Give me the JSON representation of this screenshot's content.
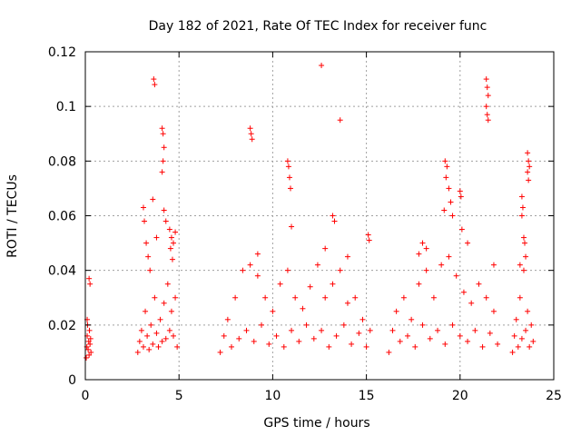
{
  "chart_data": {
    "type": "scatter",
    "title": "Day 182 of 2021, Rate Of TEC Index for receiver func",
    "xlabel": "GPS time / hours",
    "ylabel": "ROTI / TECUs",
    "xlim": [
      0,
      25
    ],
    "ylim": [
      0,
      0.12
    ],
    "xticks": [
      0,
      5,
      10,
      15,
      20,
      25
    ],
    "xtick_labels": [
      "0",
      "5",
      "10",
      "15",
      "20",
      "25"
    ],
    "yticks": [
      0,
      0.02,
      0.04,
      0.06,
      0.08,
      0.1,
      0.12
    ],
    "ytick_labels": [
      "0",
      "0.02",
      "0.04",
      "0.06",
      "0.08",
      "0.1",
      "0.12"
    ],
    "grid": true,
    "marker": "+",
    "series_color": "#ff0000",
    "series": [
      {
        "points": [
          [
            0.05,
            0.008
          ],
          [
            0.08,
            0.012
          ],
          [
            0.1,
            0.016
          ],
          [
            0.12,
            0.02
          ],
          [
            0.15,
            0.011
          ],
          [
            0.18,
            0.014
          ],
          [
            0.2,
            0.009
          ],
          [
            0.22,
            0.018
          ],
          [
            0.25,
            0.013
          ],
          [
            0.28,
            0.015
          ],
          [
            0.3,
            0.01
          ],
          [
            0.2,
            0.037
          ],
          [
            0.25,
            0.035
          ],
          [
            0.1,
            0.022
          ],
          [
            2.8,
            0.01
          ],
          [
            2.9,
            0.014
          ],
          [
            3.0,
            0.018
          ],
          [
            3.1,
            0.012
          ],
          [
            3.2,
            0.025
          ],
          [
            3.3,
            0.016
          ],
          [
            3.4,
            0.011
          ],
          [
            3.5,
            0.02
          ],
          [
            3.6,
            0.013
          ],
          [
            3.7,
            0.03
          ],
          [
            3.8,
            0.017
          ],
          [
            3.9,
            0.012
          ],
          [
            4.0,
            0.022
          ],
          [
            4.1,
            0.014
          ],
          [
            4.2,
            0.028
          ],
          [
            4.3,
            0.015
          ],
          [
            4.4,
            0.035
          ],
          [
            4.5,
            0.018
          ],
          [
            4.6,
            0.025
          ],
          [
            4.7,
            0.016
          ],
          [
            4.8,
            0.03
          ],
          [
            4.9,
            0.012
          ],
          [
            3.1,
            0.063
          ],
          [
            3.15,
            0.058
          ],
          [
            3.25,
            0.05
          ],
          [
            3.35,
            0.045
          ],
          [
            3.45,
            0.04
          ],
          [
            3.6,
            0.066
          ],
          [
            3.65,
            0.11
          ],
          [
            3.7,
            0.108
          ],
          [
            3.8,
            0.052
          ],
          [
            4.1,
            0.092
          ],
          [
            4.15,
            0.09
          ],
          [
            4.2,
            0.085
          ],
          [
            4.15,
            0.08
          ],
          [
            4.1,
            0.076
          ],
          [
            4.2,
            0.062
          ],
          [
            4.3,
            0.058
          ],
          [
            4.5,
            0.055
          ],
          [
            4.6,
            0.052
          ],
          [
            4.7,
            0.05
          ],
          [
            4.8,
            0.054
          ],
          [
            4.55,
            0.048
          ],
          [
            4.65,
            0.044
          ],
          [
            7.2,
            0.01
          ],
          [
            7.4,
            0.016
          ],
          [
            7.6,
            0.022
          ],
          [
            7.8,
            0.012
          ],
          [
            8.0,
            0.03
          ],
          [
            8.2,
            0.015
          ],
          [
            8.4,
            0.04
          ],
          [
            8.6,
            0.018
          ],
          [
            8.8,
            0.042
          ],
          [
            9.0,
            0.014
          ],
          [
            9.2,
            0.038
          ],
          [
            9.4,
            0.02
          ],
          [
            9.6,
            0.03
          ],
          [
            9.8,
            0.013
          ],
          [
            10.0,
            0.025
          ],
          [
            10.2,
            0.016
          ],
          [
            10.4,
            0.035
          ],
          [
            10.6,
            0.012
          ],
          [
            10.8,
            0.04
          ],
          [
            11.0,
            0.018
          ],
          [
            11.2,
            0.03
          ],
          [
            11.4,
            0.014
          ],
          [
            11.6,
            0.026
          ],
          [
            11.8,
            0.02
          ],
          [
            12.0,
            0.034
          ],
          [
            12.2,
            0.015
          ],
          [
            12.4,
            0.042
          ],
          [
            12.6,
            0.018
          ],
          [
            12.8,
            0.03
          ],
          [
            13.0,
            0.012
          ],
          [
            13.2,
            0.035
          ],
          [
            13.4,
            0.016
          ],
          [
            13.6,
            0.04
          ],
          [
            13.8,
            0.02
          ],
          [
            14.0,
            0.028
          ],
          [
            14.2,
            0.013
          ],
          [
            14.4,
            0.03
          ],
          [
            14.6,
            0.017
          ],
          [
            14.8,
            0.022
          ],
          [
            15.0,
            0.012
          ],
          [
            15.2,
            0.018
          ],
          [
            8.8,
            0.092
          ],
          [
            8.85,
            0.09
          ],
          [
            8.9,
            0.088
          ],
          [
            10.8,
            0.08
          ],
          [
            10.85,
            0.078
          ],
          [
            10.9,
            0.074
          ],
          [
            10.95,
            0.07
          ],
          [
            11.0,
            0.056
          ],
          [
            12.6,
            0.115
          ],
          [
            13.6,
            0.095
          ],
          [
            13.2,
            0.06
          ],
          [
            13.3,
            0.058
          ],
          [
            15.1,
            0.053
          ],
          [
            15.15,
            0.051
          ],
          [
            9.2,
            0.046
          ],
          [
            12.8,
            0.048
          ],
          [
            14.0,
            0.045
          ],
          [
            16.2,
            0.01
          ],
          [
            16.4,
            0.018
          ],
          [
            16.6,
            0.025
          ],
          [
            16.8,
            0.014
          ],
          [
            17.0,
            0.03
          ],
          [
            17.2,
            0.016
          ],
          [
            17.4,
            0.022
          ],
          [
            17.6,
            0.012
          ],
          [
            17.8,
            0.035
          ],
          [
            18.0,
            0.02
          ],
          [
            18.2,
            0.04
          ],
          [
            18.4,
            0.015
          ],
          [
            18.6,
            0.03
          ],
          [
            18.8,
            0.018
          ],
          [
            19.0,
            0.042
          ],
          [
            19.2,
            0.013
          ],
          [
            19.4,
            0.045
          ],
          [
            19.6,
            0.02
          ],
          [
            19.8,
            0.038
          ],
          [
            20.0,
            0.016
          ],
          [
            20.2,
            0.032
          ],
          [
            20.4,
            0.014
          ],
          [
            20.6,
            0.028
          ],
          [
            20.8,
            0.018
          ],
          [
            21.0,
            0.035
          ],
          [
            21.2,
            0.012
          ],
          [
            21.4,
            0.03
          ],
          [
            21.6,
            0.017
          ],
          [
            21.8,
            0.025
          ],
          [
            22.0,
            0.013
          ],
          [
            19.2,
            0.08
          ],
          [
            19.3,
            0.078
          ],
          [
            19.25,
            0.074
          ],
          [
            19.4,
            0.07
          ],
          [
            19.5,
            0.065
          ],
          [
            19.15,
            0.062
          ],
          [
            19.6,
            0.06
          ],
          [
            20.0,
            0.069
          ],
          [
            20.05,
            0.067
          ],
          [
            20.1,
            0.055
          ],
          [
            21.4,
            0.11
          ],
          [
            21.45,
            0.107
          ],
          [
            21.5,
            0.104
          ],
          [
            21.4,
            0.1
          ],
          [
            21.45,
            0.097
          ],
          [
            21.5,
            0.095
          ],
          [
            18.0,
            0.05
          ],
          [
            18.2,
            0.048
          ],
          [
            20.4,
            0.05
          ],
          [
            21.8,
            0.042
          ],
          [
            17.8,
            0.046
          ],
          [
            22.8,
            0.01
          ],
          [
            22.9,
            0.016
          ],
          [
            23.0,
            0.022
          ],
          [
            23.1,
            0.012
          ],
          [
            23.2,
            0.03
          ],
          [
            23.3,
            0.015
          ],
          [
            23.4,
            0.04
          ],
          [
            23.5,
            0.018
          ],
          [
            23.6,
            0.025
          ],
          [
            23.7,
            0.012
          ],
          [
            23.8,
            0.02
          ],
          [
            23.9,
            0.014
          ],
          [
            23.6,
            0.083
          ],
          [
            23.65,
            0.08
          ],
          [
            23.7,
            0.078
          ],
          [
            23.6,
            0.076
          ],
          [
            23.65,
            0.073
          ],
          [
            23.3,
            0.067
          ],
          [
            23.35,
            0.063
          ],
          [
            23.3,
            0.06
          ],
          [
            23.4,
            0.052
          ],
          [
            23.45,
            0.05
          ],
          [
            23.5,
            0.045
          ],
          [
            23.2,
            0.042
          ]
        ]
      }
    ]
  }
}
